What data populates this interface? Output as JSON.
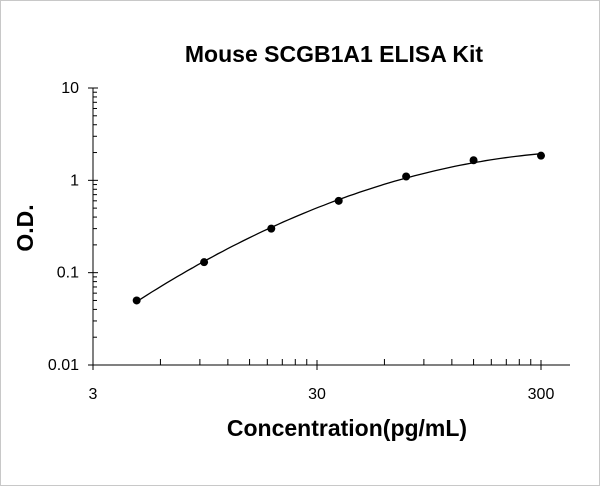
{
  "chart_data": {
    "type": "scatter",
    "title": "Mouse SCGB1A1  ELISA Kit",
    "xlabel": "Concentration(pg/mL)",
    "ylabel": "O.D.",
    "x_scale": "log",
    "y_scale": "log",
    "xlim": [
      3,
      300
    ],
    "ylim": [
      0.01,
      10
    ],
    "x_ticks": [
      "3",
      "30",
      "300"
    ],
    "y_ticks": [
      "0.01",
      "0.1",
      "1",
      "10"
    ],
    "grid": false,
    "legend": "none",
    "series": [
      {
        "points": [
          {
            "x": 4.7,
            "y": 0.05
          },
          {
            "x": 9.4,
            "y": 0.13
          },
          {
            "x": 18.75,
            "y": 0.3
          },
          {
            "x": 37.5,
            "y": 0.6
          },
          {
            "x": 75,
            "y": 1.1
          },
          {
            "x": 150,
            "y": 1.65
          },
          {
            "x": 300,
            "y": 1.85
          }
        ],
        "fit_curve": true,
        "color": "#000000"
      }
    ]
  }
}
